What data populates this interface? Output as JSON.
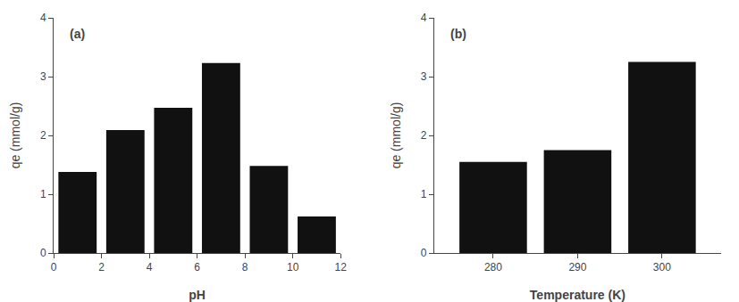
{
  "chart_data": [
    {
      "type": "bar",
      "xlabel": "pH",
      "ylabel": "qe (mmol/g)",
      "x": [
        1,
        3,
        5,
        7,
        9,
        11
      ],
      "values": [
        1.38,
        2.09,
        2.47,
        3.23,
        1.48,
        0.62
      ],
      "xlim": [
        0,
        12
      ],
      "ylim": [
        0,
        4
      ],
      "xticks": [
        0,
        2,
        4,
        6,
        8,
        10,
        12
      ],
      "yticks": [
        0,
        1,
        2,
        3,
        4
      ],
      "color": "#111111",
      "grid": false,
      "annotations": [
        "(a)"
      ]
    },
    {
      "type": "bar",
      "xlabel": "Temperature (K)",
      "ylabel": "qe (mmol/g)",
      "x": [
        280,
        290,
        300
      ],
      "values": [
        1.55,
        1.75,
        3.25
      ],
      "xlim": [
        273,
        307
      ],
      "ylim": [
        0,
        4
      ],
      "xticks": [
        280,
        290,
        300
      ],
      "yticks": [
        0,
        1,
        2,
        3,
        4
      ],
      "color": "#111111",
      "grid": false,
      "annotations": [
        "(b)"
      ]
    }
  ]
}
